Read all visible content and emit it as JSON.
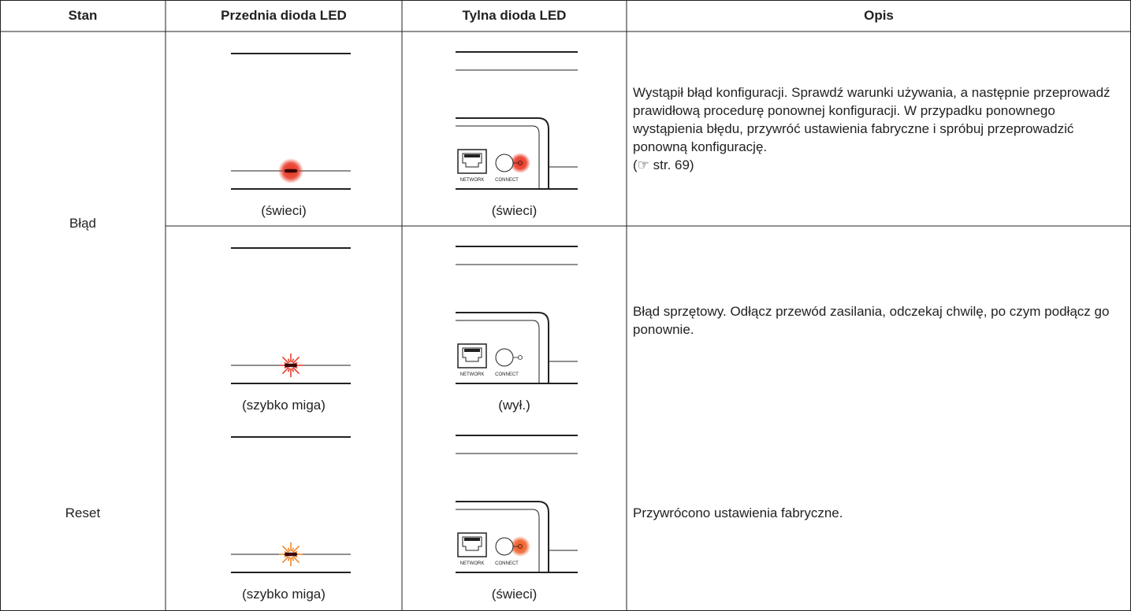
{
  "table": {
    "header": [
      "Stan",
      "Przednia dioda LED",
      "Tylna dioda LED",
      "Opis"
    ],
    "rear_labels": {
      "network": "NETWORK",
      "connect": "CONNECT"
    },
    "groups": [
      {
        "state": "Błąd",
        "rows": [
          {
            "front": {
              "label": "(świeci)",
              "mode": "glow",
              "color": "#e8321e"
            },
            "rear": {
              "label": "(świeci)",
              "lit": true,
              "color": "#e8321e"
            },
            "description": [
              "Wystąpił błąd konfiguracji. Sprawdź warunki używania, a następnie przeprowadź prawidłową procedurę ponownej konfiguracji. W przypadku ponownego wystąpienia błędu, przywróć ustawienia fabryczne i spróbuj przeprowadzić ponowną konfigurację.",
              "(☞ str. 69)"
            ]
          },
          {
            "front": {
              "label": "(szybko miga)",
              "mode": "burst",
              "color": "#e8321e"
            },
            "rear": {
              "label": "(wył.)",
              "lit": false,
              "color": "#ffffff"
            },
            "description": [
              "Błąd sprzętowy. Odłącz przewód zasilania, odczekaj chwilę, po czym podłącz go ponownie."
            ]
          }
        ]
      },
      {
        "state": "Reset",
        "rows": [
          {
            "front": {
              "label": "(szybko miga)",
              "mode": "burst",
              "color": "#f07f1e"
            },
            "rear": {
              "label": "(świeci)",
              "lit": true,
              "color": "#ee5a22"
            },
            "description": [
              "Przywrócono ustawienia fabryczne."
            ]
          }
        ]
      }
    ]
  }
}
